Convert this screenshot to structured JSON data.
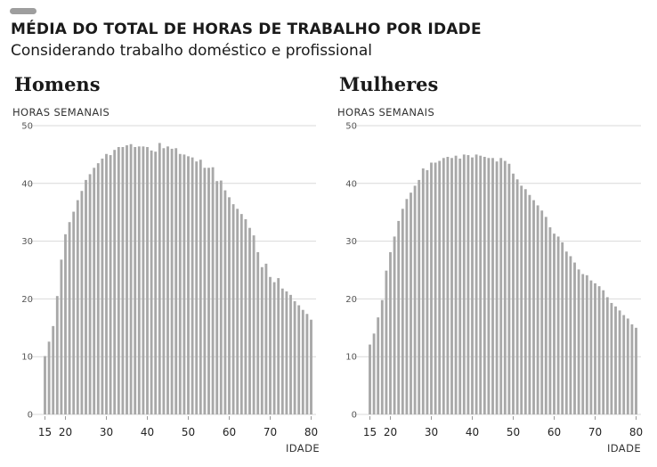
{
  "header": {
    "title": "MÉDIA DO TOTAL DE HORAS DE TRABALHO POR IDADE",
    "subtitle": "Considerando trabalho doméstico e profissional"
  },
  "colors": {
    "bar": "#a8a8a8",
    "grid": "#d9d9d9",
    "tick": "#9a9a9a"
  },
  "chart_data": [
    {
      "type": "bar",
      "title": "Homens",
      "ylabel": "HORAS SEMANAIS",
      "xlabel": "IDADE",
      "ylim": [
        0,
        50
      ],
      "yticks": [
        "0",
        "10",
        "20",
        "30",
        "40",
        "50"
      ],
      "xticks": [
        "15",
        "20",
        "30",
        "40",
        "50",
        "60",
        "70",
        "80"
      ],
      "grid": true,
      "x": [
        15,
        16,
        17,
        18,
        19,
        20,
        21,
        22,
        23,
        24,
        25,
        26,
        27,
        28,
        29,
        30,
        31,
        32,
        33,
        34,
        35,
        36,
        37,
        38,
        39,
        40,
        41,
        42,
        43,
        44,
        45,
        46,
        47,
        48,
        49,
        50,
        51,
        52,
        53,
        54,
        55,
        56,
        57,
        58,
        59,
        60,
        61,
        62,
        63,
        64,
        65,
        66,
        67,
        68,
        69,
        70,
        71,
        72,
        73,
        74,
        75,
        76,
        77,
        78,
        79,
        80
      ],
      "values": [
        10.1,
        12.6,
        15.3,
        20.5,
        26.8,
        31.2,
        33.3,
        35.1,
        37.1,
        38.7,
        40.6,
        41.6,
        42.7,
        43.5,
        44.3,
        45.1,
        44.9,
        45.8,
        46.3,
        46.3,
        46.6,
        46.8,
        46.3,
        46.4,
        46.4,
        46.3,
        45.7,
        45.5,
        47.0,
        46.1,
        46.4,
        46.0,
        46.1,
        45.1,
        45.0,
        44.7,
        44.5,
        43.8,
        44.1,
        42.7,
        42.7,
        42.8,
        40.4,
        40.5,
        38.8,
        37.6,
        36.4,
        35.6,
        34.7,
        33.8,
        32.3,
        31.0,
        28.1,
        25.5,
        26.1,
        23.8,
        22.9,
        23.6,
        21.8,
        21.3,
        20.7,
        19.6,
        18.9,
        18.1,
        17.4,
        16.4
      ]
    },
    {
      "type": "bar",
      "title": "Mulheres",
      "ylabel": "HORAS SEMANAIS",
      "xlabel": "IDADE",
      "ylim": [
        0,
        50
      ],
      "yticks": [
        "0",
        "10",
        "20",
        "30",
        "40",
        "50"
      ],
      "xticks": [
        "15",
        "20",
        "30",
        "40",
        "50",
        "60",
        "70",
        "80"
      ],
      "grid": true,
      "x": [
        15,
        16,
        17,
        18,
        19,
        20,
        21,
        22,
        23,
        24,
        25,
        26,
        27,
        28,
        29,
        30,
        31,
        32,
        33,
        34,
        35,
        36,
        37,
        38,
        39,
        40,
        41,
        42,
        43,
        44,
        45,
        46,
        47,
        48,
        49,
        50,
        51,
        52,
        53,
        54,
        55,
        56,
        57,
        58,
        59,
        60,
        61,
        62,
        63,
        64,
        65,
        66,
        67,
        68,
        69,
        70,
        71,
        72,
        73,
        74,
        75,
        76,
        77,
        78,
        79,
        80
      ],
      "values": [
        12.1,
        14.0,
        16.8,
        19.8,
        24.9,
        28.1,
        30.8,
        33.5,
        35.6,
        37.3,
        38.4,
        39.6,
        40.6,
        42.6,
        42.3,
        43.6,
        43.6,
        43.9,
        44.4,
        44.6,
        44.4,
        44.8,
        44.3,
        45.0,
        44.9,
        44.5,
        45.0,
        44.8,
        44.6,
        44.4,
        44.4,
        43.8,
        44.4,
        43.9,
        43.4,
        41.7,
        40.7,
        39.6,
        39.0,
        38.0,
        37.1,
        36.2,
        35.3,
        34.2,
        32.4,
        31.3,
        30.8,
        29.8,
        28.2,
        27.4,
        26.3,
        25.1,
        24.3,
        24.1,
        23.2,
        22.7,
        22.2,
        21.5,
        20.3,
        19.3,
        18.7,
        18.0,
        17.2,
        16.6,
        15.6,
        15.0
      ]
    }
  ]
}
